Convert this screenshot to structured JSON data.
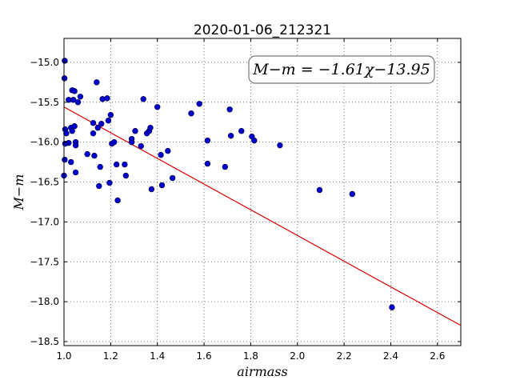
{
  "chart_data": {
    "type": "scatter",
    "title": "2020-01-06_212321",
    "xlabel": "airmass",
    "ylabel": "M−m",
    "xlim": [
      1.0,
      2.7
    ],
    "ylim": [
      -18.55,
      -14.7
    ],
    "xticks": [
      1.0,
      1.2,
      1.4,
      1.6,
      1.8,
      2.0,
      2.2,
      2.4,
      2.6
    ],
    "xtick_labels": [
      "1.0",
      "1.2",
      "1.4",
      "1.6",
      "1.8",
      "2.0",
      "2.2",
      "2.4",
      "2.6"
    ],
    "yticks": [
      -15.0,
      -15.5,
      -16.0,
      -16.5,
      -17.0,
      -17.5,
      -18.0,
      -18.5
    ],
    "ytick_labels": [
      "−15.0",
      "−15.5",
      "−16.0",
      "−16.5",
      "−17.0",
      "−17.5",
      "−18.0",
      "−18.5"
    ],
    "grid": true,
    "annotation": "M−m = −1.61χ−13.95",
    "point_color": "#0000cc",
    "line_color": "#dd0000",
    "fit": {
      "slope": -1.61,
      "intercept": -13.95
    },
    "points": [
      [
        1.003,
        -14.98
      ],
      [
        1.002,
        -15.2
      ],
      [
        1.02,
        -15.47
      ],
      [
        1.035,
        -15.35
      ],
      [
        1.045,
        -15.36
      ],
      [
        1.04,
        -15.47
      ],
      [
        1.06,
        -15.5
      ],
      [
        1.07,
        -15.43
      ],
      [
        1.005,
        -15.84
      ],
      [
        1.01,
        -15.89
      ],
      [
        1.03,
        -15.82
      ],
      [
        1.045,
        -15.8
      ],
      [
        1.035,
        -15.86
      ],
      [
        1.02,
        -16.01
      ],
      [
        1.005,
        -16.02
      ],
      [
        1.05,
        -16.0
      ],
      [
        1.05,
        -16.04
      ],
      [
        1.003,
        -16.22
      ],
      [
        1.03,
        -16.25
      ],
      [
        1.05,
        -16.38
      ],
      [
        1.0,
        -16.42
      ],
      [
        1.1,
        -16.15
      ],
      [
        1.125,
        -15.76
      ],
      [
        1.125,
        -15.89
      ],
      [
        1.13,
        -16.17
      ],
      [
        1.14,
        -15.25
      ],
      [
        1.165,
        -15.46
      ],
      [
        1.185,
        -15.45
      ],
      [
        1.145,
        -15.82
      ],
      [
        1.16,
        -15.77
      ],
      [
        1.19,
        -15.73
      ],
      [
        1.2,
        -15.66
      ],
      [
        1.205,
        -16.02
      ],
      [
        1.215,
        -16.0
      ],
      [
        1.225,
        -16.28
      ],
      [
        1.155,
        -16.31
      ],
      [
        1.15,
        -16.55
      ],
      [
        1.195,
        -16.51
      ],
      [
        1.23,
        -16.73
      ],
      [
        1.26,
        -16.28
      ],
      [
        1.265,
        -16.42
      ],
      [
        1.29,
        -15.96
      ],
      [
        1.29,
        -16.0
      ],
      [
        1.305,
        -15.86
      ],
      [
        1.33,
        -16.05
      ],
      [
        1.34,
        -15.46
      ],
      [
        1.355,
        -15.89
      ],
      [
        1.365,
        -15.86
      ],
      [
        1.37,
        -15.82
      ],
      [
        1.375,
        -16.59
      ],
      [
        1.4,
        -15.56
      ],
      [
        1.415,
        -16.16
      ],
      [
        1.42,
        -16.54
      ],
      [
        1.445,
        -16.11
      ],
      [
        1.465,
        -16.45
      ],
      [
        1.545,
        -15.64
      ],
      [
        1.58,
        -15.52
      ],
      [
        1.615,
        -15.98
      ],
      [
        1.615,
        -16.27
      ],
      [
        1.69,
        -16.31
      ],
      [
        1.71,
        -15.59
      ],
      [
        1.715,
        -15.92
      ],
      [
        1.76,
        -15.86
      ],
      [
        1.805,
        -15.93
      ],
      [
        1.815,
        -15.98
      ],
      [
        1.925,
        -16.04
      ],
      [
        2.095,
        -16.6
      ],
      [
        2.235,
        -16.65
      ],
      [
        2.405,
        -18.07
      ]
    ]
  }
}
